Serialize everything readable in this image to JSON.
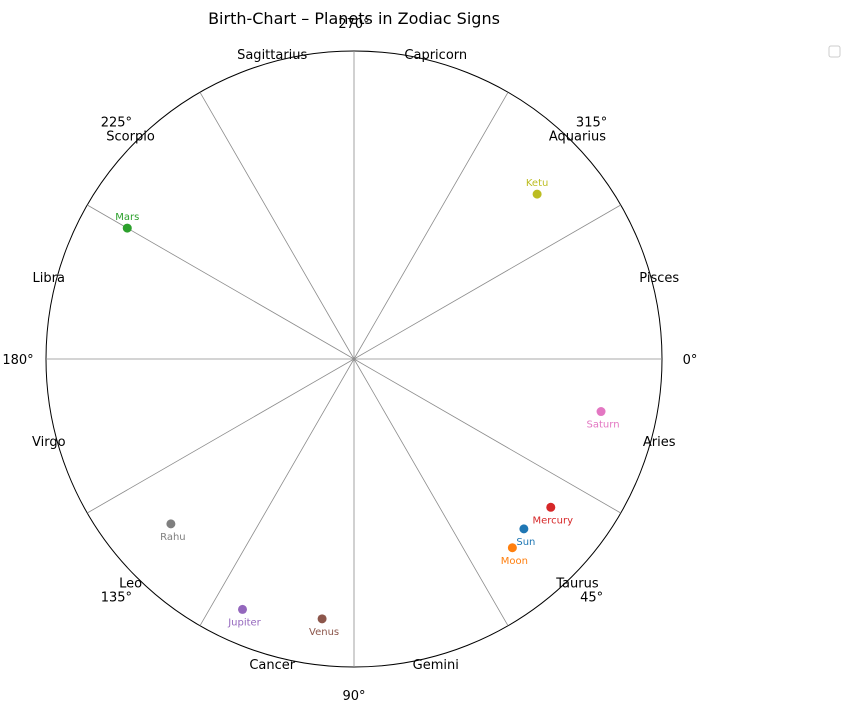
{
  "chart_data": {
    "type": "scatter",
    "projection": "polar",
    "title": "Birth-Chart – Planets in Zodiac Signs",
    "angle_direction": "clockwise",
    "zero_angle_position": "east",
    "radius_range": [
      0,
      1
    ],
    "grid": true,
    "legend": "top-right (empty)",
    "angular_ticks": [
      {
        "angle": 0,
        "label": "0°"
      },
      {
        "angle": 45,
        "label": "45°"
      },
      {
        "angle": 90,
        "label": "90°"
      },
      {
        "angle": 135,
        "label": "135°"
      },
      {
        "angle": 180,
        "label": "180°"
      },
      {
        "angle": 225,
        "label": "225°"
      },
      {
        "angle": 270,
        "label": "270°"
      },
      {
        "angle": 315,
        "label": "315°"
      }
    ],
    "sign_boundaries": [
      0,
      30,
      60,
      90,
      120,
      150,
      180,
      210,
      240,
      270,
      300,
      330
    ],
    "signs": [
      {
        "name": "Aries",
        "mid_angle": 15
      },
      {
        "name": "Taurus",
        "mid_angle": 45
      },
      {
        "name": "Gemini",
        "mid_angle": 75
      },
      {
        "name": "Cancer",
        "mid_angle": 105
      },
      {
        "name": "Leo",
        "mid_angle": 135
      },
      {
        "name": "Virgo",
        "mid_angle": 165
      },
      {
        "name": "Libra",
        "mid_angle": 195
      },
      {
        "name": "Scorpio",
        "mid_angle": 225
      },
      {
        "name": "Sagittarius",
        "mid_angle": 255
      },
      {
        "name": "Capricorn",
        "mid_angle": 285
      },
      {
        "name": "Aquarius",
        "mid_angle": 315
      },
      {
        "name": "Pisces",
        "mid_angle": 345
      }
    ],
    "planets": [
      {
        "name": "Sun",
        "angle": 45,
        "r": 0.78,
        "color": "#1f77b4",
        "label_pos": "below"
      },
      {
        "name": "Moon",
        "angle": 50,
        "r": 0.8,
        "color": "#ff7f0e",
        "label_pos": "below"
      },
      {
        "name": "Mars",
        "angle": 210,
        "r": 0.85,
        "color": "#2ca02c",
        "label_pos": "above"
      },
      {
        "name": "Mercury",
        "angle": 37,
        "r": 0.8,
        "color": "#d62728",
        "label_pos": "below"
      },
      {
        "name": "Jupiter",
        "angle": 114,
        "r": 0.89,
        "color": "#9467bd",
        "label_pos": "below"
      },
      {
        "name": "Venus",
        "angle": 97,
        "r": 0.85,
        "color": "#8c564b",
        "label_pos": "below"
      },
      {
        "name": "Saturn",
        "angle": 12,
        "r": 0.82,
        "color": "#e377c2",
        "label_pos": "below"
      },
      {
        "name": "Rahu",
        "angle": 138,
        "r": 0.8,
        "color": "#7f7f7f",
        "label_pos": "below"
      },
      {
        "name": "Ketu",
        "angle": 318,
        "r": 0.8,
        "color": "#bcbd22",
        "label_pos": "above"
      }
    ]
  }
}
